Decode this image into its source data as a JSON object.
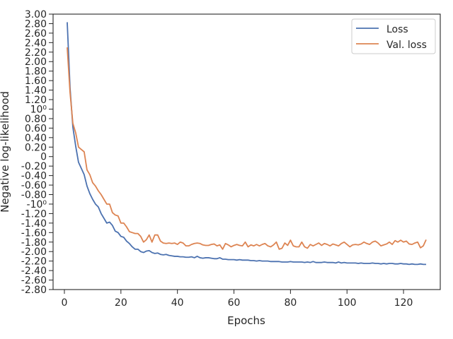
{
  "chart_data": {
    "type": "line",
    "title": "",
    "xlabel": "Epochs",
    "ylabel": "Negative log-likelihood",
    "xlim": [
      -4,
      133
    ],
    "ylim": [
      -2.8,
      3.0
    ],
    "x_ticks": [
      0,
      20,
      40,
      60,
      80,
      100,
      120
    ],
    "x_tick_labels": [
      "0",
      "20",
      "40",
      "60",
      "80",
      "100",
      "120"
    ],
    "y_ticks": [
      3.0,
      2.8,
      2.6,
      2.4,
      2.2,
      2.0,
      1.8,
      1.6,
      1.4,
      1.2,
      1.0,
      0.8,
      0.6,
      0.4,
      0.2,
      0,
      -0.2,
      -0.4,
      -0.6,
      -0.8,
      -1.0,
      -1.2,
      -1.4,
      -1.6,
      -1.8,
      -2.0,
      -2.2,
      -2.4,
      -2.6,
      -2.8
    ],
    "y_tick_labels": [
      "3.00",
      "2.80",
      "2.60",
      "2.40",
      "2.20",
      "2.00",
      "1.80",
      "1.60",
      "1.40",
      "1.20",
      "10⁰",
      "0.80",
      "0.60",
      "0.40",
      "0.20",
      "0",
      "-0.20",
      "-0.40",
      "-0.60",
      "-0.80",
      "-10⁰",
      "-1.20",
      "-1.40",
      "-1.60",
      "-1.80",
      "-2.00",
      "-2.20",
      "-2.40",
      "-2.60",
      "-2.80"
    ],
    "grid": false,
    "legend_position": "top-right",
    "x": [
      1,
      2,
      3,
      4,
      5,
      6,
      7,
      8,
      9,
      10,
      11,
      12,
      13,
      14,
      15,
      16,
      17,
      18,
      19,
      20,
      21,
      22,
      23,
      24,
      25,
      26,
      27,
      28,
      29,
      30,
      31,
      32,
      33,
      34,
      35,
      36,
      37,
      38,
      39,
      40,
      41,
      42,
      43,
      44,
      45,
      46,
      47,
      48,
      49,
      50,
      51,
      52,
      53,
      54,
      55,
      56,
      57,
      58,
      59,
      60,
      61,
      62,
      63,
      64,
      65,
      66,
      67,
      68,
      69,
      70,
      71,
      72,
      73,
      74,
      75,
      76,
      77,
      78,
      79,
      80,
      81,
      82,
      83,
      84,
      85,
      86,
      87,
      88,
      89,
      90,
      91,
      92,
      93,
      94,
      95,
      96,
      97,
      98,
      99,
      100,
      101,
      102,
      103,
      104,
      105,
      106,
      107,
      108,
      109,
      110,
      111,
      112,
      113,
      114,
      115,
      116,
      117,
      118,
      119,
      120,
      121,
      122,
      123,
      124,
      125,
      126,
      127,
      128
    ],
    "series": [
      {
        "name": "Loss",
        "color": "#4c72b0",
        "values": [
          2.83,
          1.45,
          0.62,
          0.22,
          -0.12,
          -0.25,
          -0.38,
          -0.62,
          -0.78,
          -0.9,
          -1.0,
          -1.06,
          -1.2,
          -1.3,
          -1.4,
          -1.38,
          -1.45,
          -1.57,
          -1.6,
          -1.68,
          -1.7,
          -1.78,
          -1.83,
          -1.9,
          -1.95,
          -1.95,
          -2.0,
          -2.02,
          -1.99,
          -1.98,
          -2.02,
          -2.04,
          -2.03,
          -2.06,
          -2.07,
          -2.06,
          -2.08,
          -2.09,
          -2.1,
          -2.1,
          -2.11,
          -2.11,
          -2.12,
          -2.12,
          -2.11,
          -2.13,
          -2.1,
          -2.13,
          -2.14,
          -2.13,
          -2.13,
          -2.14,
          -2.15,
          -2.15,
          -2.13,
          -2.16,
          -2.16,
          -2.17,
          -2.17,
          -2.17,
          -2.18,
          -2.17,
          -2.18,
          -2.18,
          -2.18,
          -2.19,
          -2.19,
          -2.2,
          -2.19,
          -2.2,
          -2.2,
          -2.2,
          -2.21,
          -2.21,
          -2.21,
          -2.21,
          -2.22,
          -2.22,
          -2.22,
          -2.21,
          -2.22,
          -2.22,
          -2.22,
          -2.22,
          -2.23,
          -2.22,
          -2.23,
          -2.21,
          -2.23,
          -2.23,
          -2.23,
          -2.22,
          -2.23,
          -2.23,
          -2.23,
          -2.24,
          -2.22,
          -2.24,
          -2.23,
          -2.24,
          -2.24,
          -2.24,
          -2.24,
          -2.25,
          -2.24,
          -2.25,
          -2.25,
          -2.25,
          -2.24,
          -2.25,
          -2.25,
          -2.26,
          -2.25,
          -2.26,
          -2.25,
          -2.25,
          -2.26,
          -2.26,
          -2.25,
          -2.26,
          -2.26,
          -2.27,
          -2.26,
          -2.27,
          -2.27,
          -2.26,
          -2.27,
          -2.27
        ]
      },
      {
        "name": "Val. loss",
        "color": "#dd8452",
        "values": [
          2.3,
          1.35,
          0.7,
          0.5,
          0.2,
          0.15,
          0.1,
          -0.28,
          -0.38,
          -0.55,
          -0.62,
          -0.72,
          -0.8,
          -0.9,
          -1.0,
          -1.0,
          -1.18,
          -1.23,
          -1.25,
          -1.4,
          -1.4,
          -1.48,
          -1.58,
          -1.6,
          -1.62,
          -1.62,
          -1.68,
          -1.8,
          -1.75,
          -1.65,
          -1.8,
          -1.65,
          -1.65,
          -1.78,
          -1.82,
          -1.83,
          -1.82,
          -1.83,
          -1.82,
          -1.85,
          -1.8,
          -1.82,
          -1.88,
          -1.88,
          -1.85,
          -1.83,
          -1.82,
          -1.83,
          -1.86,
          -1.87,
          -1.87,
          -1.85,
          -1.84,
          -1.88,
          -1.86,
          -1.95,
          -1.83,
          -1.86,
          -1.9,
          -1.87,
          -1.85,
          -1.87,
          -1.88,
          -1.8,
          -1.9,
          -1.86,
          -1.88,
          -1.85,
          -1.88,
          -1.85,
          -1.83,
          -1.88,
          -1.9,
          -1.86,
          -1.8,
          -1.95,
          -1.93,
          -1.82,
          -1.87,
          -1.76,
          -1.88,
          -1.9,
          -1.9,
          -1.8,
          -1.9,
          -1.93,
          -1.85,
          -1.88,
          -1.85,
          -1.82,
          -1.87,
          -1.83,
          -1.85,
          -1.88,
          -1.84,
          -1.86,
          -1.88,
          -1.83,
          -1.8,
          -1.85,
          -1.9,
          -1.86,
          -1.85,
          -1.86,
          -1.84,
          -1.8,
          -1.83,
          -1.85,
          -1.8,
          -1.78,
          -1.82,
          -1.88,
          -1.86,
          -1.84,
          -1.8,
          -1.85,
          -1.77,
          -1.8,
          -1.76,
          -1.8,
          -1.78,
          -1.84,
          -1.85,
          -1.82,
          -1.8,
          -1.92,
          -1.88,
          -1.75
        ]
      }
    ]
  }
}
